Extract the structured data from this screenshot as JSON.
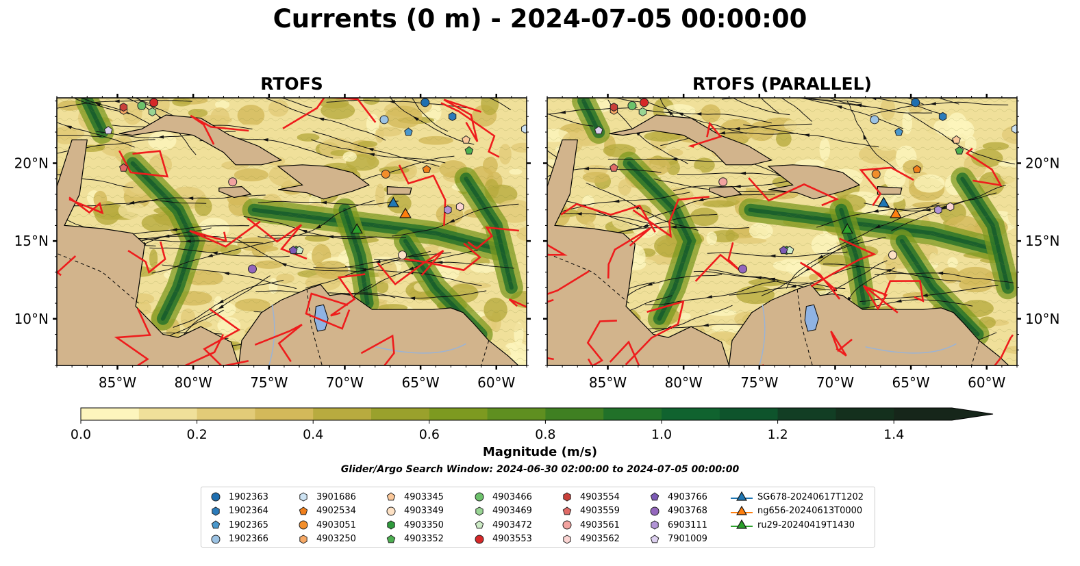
{
  "title": "Currents (0 m) - 2024-07-05 00:00:00",
  "chart_data": {
    "type": "heatmap",
    "panels": [
      {
        "title": "RTOFS"
      },
      {
        "title": "RTOFS (PARALLEL)"
      }
    ],
    "xlim": [
      -89,
      -58
    ],
    "ylim": [
      7,
      24.2
    ],
    "x_ticks": [
      {
        "value": -85,
        "label": "85°W"
      },
      {
        "value": -80,
        "label": "80°W"
      },
      {
        "value": -75,
        "label": "75°W"
      },
      {
        "value": -70,
        "label": "70°W"
      },
      {
        "value": -65,
        "label": "65°W"
      },
      {
        "value": -60,
        "label": "60°W"
      }
    ],
    "y_ticks": [
      {
        "value": 10,
        "label": "10°N"
      },
      {
        "value": 15,
        "label": "15°N"
      },
      {
        "value": 20,
        "label": "20°N"
      }
    ],
    "colorbar": {
      "label": "Magnitude (m/s)",
      "min": 0.0,
      "max": 1.5,
      "extend": "max",
      "ticks": [
        {
          "value": 0.0,
          "label": "0.0"
        },
        {
          "value": 0.2,
          "label": "0.2"
        },
        {
          "value": 0.4,
          "label": "0.4"
        },
        {
          "value": 0.6,
          "label": "0.6"
        },
        {
          "value": 0.8,
          "label": "0.8"
        },
        {
          "value": 1.0,
          "label": "1.0"
        },
        {
          "value": 1.2,
          "label": "1.2"
        },
        {
          "value": 1.4,
          "label": "1.4"
        }
      ],
      "colors": [
        "#fdf5bd",
        "#f0e09a",
        "#e2cb78",
        "#d3b95a",
        "#b8ab3f",
        "#9aa12c",
        "#7d9a20",
        "#5f8f20",
        "#3f8022",
        "#217129",
        "#10632f",
        "#0e542c",
        "#123e24",
        "#14301d",
        "#16261a"
      ]
    },
    "search_window_note": "Glider/Argo Search Window: 2024-06-30 02:00:00 to 2024-07-05 00:00:00",
    "gliders": [
      {
        "name": "SG678-20240617T1202",
        "color": "#1f77b4",
        "x": -66.8,
        "y": 17.4
      },
      {
        "name": "ng656-20240613T0000",
        "color": "#ff7f0e",
        "x": -66.0,
        "y": 16.7
      },
      {
        "name": "ru29-20240419T1430",
        "color": "#2ca02c",
        "x": -69.2,
        "y": 15.7
      }
    ],
    "argo_floats": [
      {
        "name": "1902363",
        "marker": "circle",
        "color": "#1f6fb0",
        "x": -64.7,
        "y": 23.9
      },
      {
        "name": "1902364",
        "marker": "hexagon",
        "color": "#2b7bba",
        "x": -62.9,
        "y": 23.0
      },
      {
        "name": "1902365",
        "marker": "pentagon",
        "color": "#4a98cc",
        "x": -65.8,
        "y": 22.0
      },
      {
        "name": "1902366",
        "marker": "circle",
        "color": "#9cc3e4",
        "x": -67.4,
        "y": 22.8
      },
      {
        "name": "3901686",
        "marker": "hexagon",
        "color": "#cde3f3",
        "x": -58.1,
        "y": 22.2
      },
      {
        "name": "4902534",
        "marker": "pentagon",
        "color": "#f07f1b",
        "x": -64.6,
        "y": 19.6
      },
      {
        "name": "4903051",
        "marker": "circle",
        "color": "#f28e2b",
        "x": -67.3,
        "y": 19.3
      },
      {
        "name": "4903250",
        "marker": "hexagon",
        "color": "#f7a965",
        "x": -84.6,
        "y": 23.4
      },
      {
        "name": "4903345",
        "marker": "pentagon",
        "color": "#fbc89a",
        "x": -62.0,
        "y": 21.5
      },
      {
        "name": "4903349",
        "marker": "circle",
        "color": "#fde1c4",
        "x": -66.2,
        "y": 14.1
      },
      {
        "name": "4903350",
        "marker": "hexagon",
        "color": "#2e9a3c",
        "x": -73.2,
        "y": 14.4
      },
      {
        "name": "4903352",
        "marker": "pentagon",
        "color": "#4caf50",
        "x": -61.8,
        "y": 20.8
      },
      {
        "name": "4903466",
        "marker": "circle",
        "color": "#6cc16b",
        "x": -83.4,
        "y": 23.7
      },
      {
        "name": "4903469",
        "marker": "hexagon",
        "color": "#99d594",
        "x": -82.7,
        "y": 23.3
      },
      {
        "name": "4903472",
        "marker": "pentagon",
        "color": "#cdebc6",
        "x": -73.0,
        "y": 14.4
      },
      {
        "name": "4903553",
        "marker": "circle",
        "color": "#d62728",
        "x": -82.6,
        "y": 23.9
      },
      {
        "name": "4903554",
        "marker": "hexagon",
        "color": "#c9403a",
        "x": -84.6,
        "y": 23.6
      },
      {
        "name": "4903559",
        "marker": "pentagon",
        "color": "#e06a66",
        "x": -84.6,
        "y": 19.7
      },
      {
        "name": "4903561",
        "marker": "circle",
        "color": "#f2a3a0",
        "x": -77.4,
        "y": 18.8
      },
      {
        "name": "4903562",
        "marker": "hexagon",
        "color": "#fbd4d2",
        "x": -62.4,
        "y": 17.2
      },
      {
        "name": "4903766",
        "marker": "pentagon",
        "color": "#7c5ab5",
        "x": -73.4,
        "y": 14.4
      },
      {
        "name": "4903768",
        "marker": "circle",
        "color": "#9467bd",
        "x": -76.1,
        "y": 13.2
      },
      {
        "name": "6903111",
        "marker": "hexagon",
        "color": "#b294d6",
        "x": -63.2,
        "y": 17.0
      },
      {
        "name": "7901009",
        "marker": "pentagon",
        "color": "#ddd0f0",
        "x": -85.6,
        "y": 22.1
      }
    ]
  }
}
